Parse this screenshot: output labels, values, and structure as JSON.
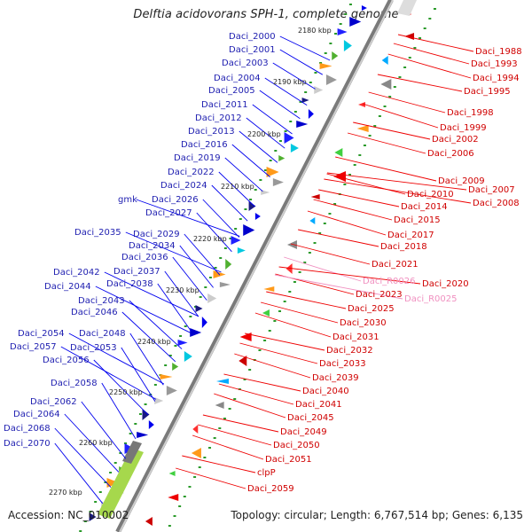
{
  "title": "Delftia acidovorans SPH-1, complete genome",
  "accession": "Accession: NC_010002",
  "topology": "Topology: circular; Length: 6,767,514 bp; Genes: 6,135",
  "colors": {
    "blue_label": "#1e1eb0",
    "red_label": "#d00000",
    "pink_label": "#f090c0",
    "forward_gene": "#0000ee",
    "reverse_gene": "#ee0000",
    "backbone": "#888888",
    "tick": "#2a9a2a"
  },
  "kbp_ticks": [
    "2180 kbp",
    "2190 kbp",
    "2200 kbp",
    "2210 kbp",
    "2220 kbp",
    "2230 kbp",
    "2240 kbp",
    "2250 kbp",
    "2260 kbp",
    "2270 kbp"
  ],
  "left_labels": [
    "Daci_2000",
    "Daci_2001",
    "Daci_2003",
    "Daci_2004",
    "Daci_2005",
    "Daci_2011",
    "Daci_2012",
    "Daci_2013",
    "Daci_2016",
    "Daci_2019",
    "Daci_2022",
    "Daci_2024",
    "gmk",
    "Daci_2026",
    "Daci_2027",
    "Daci_2035",
    "Daci_2029",
    "Daci_2034",
    "Daci_2036",
    "Daci_2042",
    "Daci_2037",
    "Daci_2044",
    "Daci_2038",
    "Daci_2043",
    "Daci_2046",
    "Daci_2054",
    "Daci_2048",
    "Daci_2057",
    "Daci_2053",
    "Daci_2056",
    "Daci_2058",
    "Daci_2062",
    "Daci_2064",
    "Daci_2068",
    "Daci_2070"
  ],
  "right_labels": [
    "Daci_1988",
    "Daci_1993",
    "Daci_1994",
    "Daci_1995",
    "Daci_1998",
    "Daci_1999",
    "Daci_2002",
    "Daci_2006",
    "Daci_2009",
    "Daci_2007",
    "Daci_2010",
    "Daci_2008",
    "Daci_2014",
    "Daci_2015",
    "Daci_2017",
    "Daci_2018",
    "Daci_2021",
    "Daci_R0026",
    "Daci_2020",
    "Daci_2023",
    "Daci_R0025",
    "Daci_2025",
    "Daci_2030",
    "Daci_2031",
    "Daci_2032",
    "Daci_2033",
    "Daci_2039",
    "Daci_2040",
    "Daci_2041",
    "Daci_2045",
    "Daci_2049",
    "Daci_2050",
    "Daci_2051",
    "clpP",
    "Daci_2059"
  ]
}
